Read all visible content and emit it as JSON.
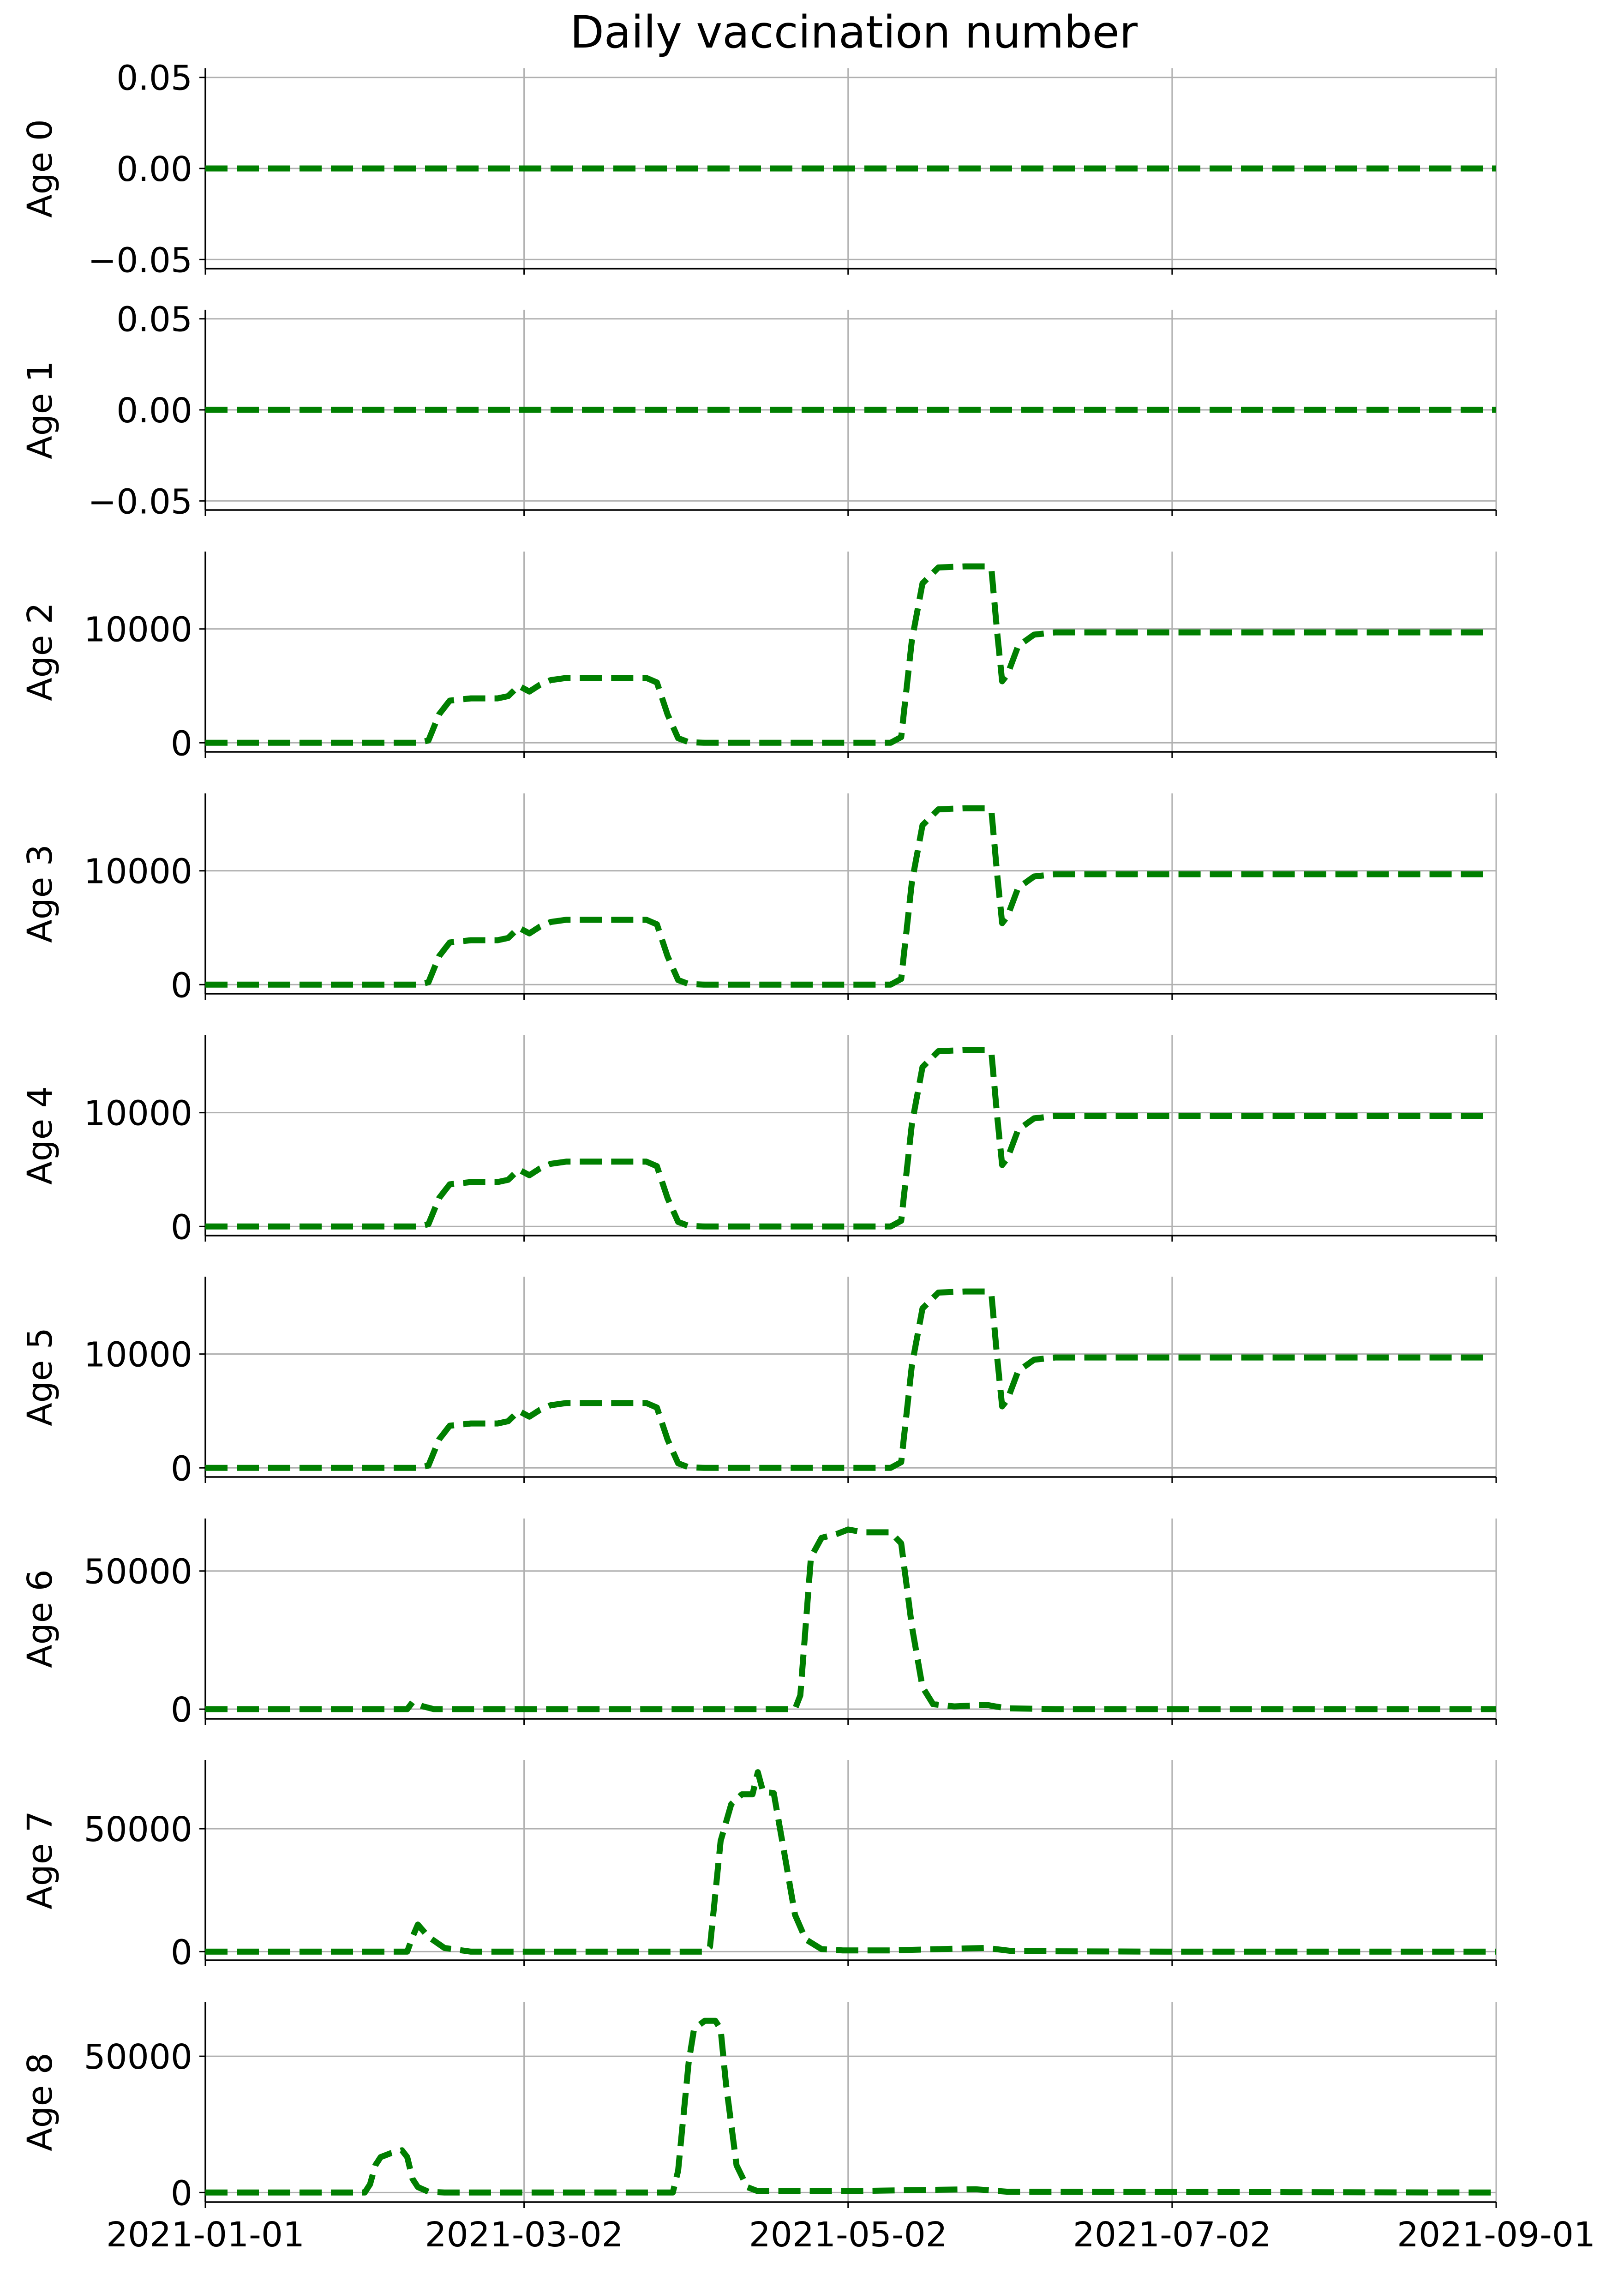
{
  "chart_data": {
    "title": "Daily vaccination number",
    "type": "line",
    "x_type": "date",
    "xlim": [
      "2021-01-01",
      "2021-09-01"
    ],
    "x_tick_labels": [
      "2021-01-01",
      "2021-03-02",
      "2021-05-02",
      "2021-07-02",
      "2021-09-01"
    ],
    "grid": true,
    "line_style": "dashed",
    "line_color": "#007f00",
    "panels": [
      {
        "ylabel": "Age 0",
        "ylim": [
          -0.055,
          0.055
        ],
        "y_ticks": [
          -0.05,
          0.0,
          0.05
        ],
        "y_tick_labels": [
          "−0.05",
          "0.00",
          "0.05"
        ],
        "series": [
          {
            "x": [
              "2021-01-01",
              "2021-09-01"
            ],
            "y": [
              0,
              0
            ]
          }
        ]
      },
      {
        "ylabel": "Age 1",
        "ylim": [
          -0.055,
          0.055
        ],
        "y_ticks": [
          -0.05,
          0.0,
          0.05
        ],
        "y_tick_labels": [
          "−0.05",
          "0.00",
          "0.05"
        ],
        "series": [
          {
            "x": [
              "2021-01-01",
              "2021-09-01"
            ],
            "y": [
              0,
              0
            ]
          }
        ]
      },
      {
        "ylabel": "Age 2",
        "ylim": [
          -800,
          16800
        ],
        "y_ticks": [
          0,
          10000
        ],
        "y_tick_labels": [
          "0",
          "10000"
        ],
        "series": [
          {
            "x": [
              "2021-01-01",
              "2021-02-10",
              "2021-02-12",
              "2021-02-14",
              "2021-02-16",
              "2021-02-20",
              "2021-02-25",
              "2021-02-27",
              "2021-03-01",
              "2021-03-03",
              "2021-03-05",
              "2021-03-07",
              "2021-03-10",
              "2021-03-15",
              "2021-03-20",
              "2021-03-25",
              "2021-03-27",
              "2021-03-29",
              "2021-03-31",
              "2021-04-02",
              "2021-04-05",
              "2021-04-15",
              "2021-04-25",
              "2021-05-05",
              "2021-05-10",
              "2021-05-12",
              "2021-05-14",
              "2021-05-16",
              "2021-05-19",
              "2021-05-24",
              "2021-05-28",
              "2021-05-29",
              "2021-05-30",
              "2021-05-31",
              "2021-06-01",
              "2021-06-03",
              "2021-06-06",
              "2021-06-10",
              "2021-06-20",
              "2021-07-01",
              "2021-07-20",
              "2021-08-10",
              "2021-08-30"
            ],
            "y": [
              0,
              0,
              200,
              2500,
              3700,
              3900,
              3900,
              4100,
              5000,
              4500,
              5100,
              5500,
              5700,
              5700,
              5700,
              5700,
              5300,
              2500,
              400,
              50,
              0,
              0,
              0,
              0,
              0,
              500,
              9000,
              14000,
              15400,
              15500,
              15500,
              15200,
              10000,
              5400,
              6000,
              8500,
              9500,
              9700,
              9700,
              9700,
              9700,
              9700,
              9700
            ]
          }
        ]
      },
      {
        "ylabel": "Age 3",
        "ylim": [
          -800,
          16800
        ],
        "y_ticks": [
          0,
          10000
        ],
        "y_tick_labels": [
          "0",
          "10000"
        ],
        "series": [
          {
            "x": [
              "2021-01-01",
              "2021-02-10",
              "2021-02-12",
              "2021-02-14",
              "2021-02-16",
              "2021-02-20",
              "2021-02-25",
              "2021-02-27",
              "2021-03-01",
              "2021-03-03",
              "2021-03-05",
              "2021-03-07",
              "2021-03-10",
              "2021-03-15",
              "2021-03-20",
              "2021-03-25",
              "2021-03-27",
              "2021-03-29",
              "2021-03-31",
              "2021-04-02",
              "2021-04-05",
              "2021-04-15",
              "2021-04-25",
              "2021-05-05",
              "2021-05-10",
              "2021-05-12",
              "2021-05-14",
              "2021-05-16",
              "2021-05-19",
              "2021-05-24",
              "2021-05-28",
              "2021-05-29",
              "2021-05-30",
              "2021-05-31",
              "2021-06-01",
              "2021-06-03",
              "2021-06-06",
              "2021-06-10",
              "2021-06-20",
              "2021-07-01",
              "2021-07-20",
              "2021-08-10",
              "2021-08-30"
            ],
            "y": [
              0,
              0,
              200,
              2500,
              3700,
              3900,
              3900,
              4100,
              5000,
              4500,
              5100,
              5500,
              5700,
              5700,
              5700,
              5700,
              5300,
              2500,
              400,
              50,
              0,
              0,
              0,
              0,
              0,
              500,
              9000,
              14000,
              15400,
              15500,
              15500,
              15200,
              10000,
              5400,
              6000,
              8500,
              9500,
              9700,
              9700,
              9700,
              9700,
              9700,
              9700
            ]
          }
        ]
      },
      {
        "ylabel": "Age 4",
        "ylim": [
          -800,
          16800
        ],
        "y_ticks": [
          0,
          10000
        ],
        "y_tick_labels": [
          "0",
          "10000"
        ],
        "series": [
          {
            "x": [
              "2021-01-01",
              "2021-02-10",
              "2021-02-12",
              "2021-02-14",
              "2021-02-16",
              "2021-02-20",
              "2021-02-25",
              "2021-02-27",
              "2021-03-01",
              "2021-03-03",
              "2021-03-05",
              "2021-03-07",
              "2021-03-10",
              "2021-03-15",
              "2021-03-20",
              "2021-03-25",
              "2021-03-27",
              "2021-03-29",
              "2021-03-31",
              "2021-04-02",
              "2021-04-05",
              "2021-04-15",
              "2021-04-25",
              "2021-05-05",
              "2021-05-10",
              "2021-05-12",
              "2021-05-14",
              "2021-05-16",
              "2021-05-19",
              "2021-05-24",
              "2021-05-28",
              "2021-05-29",
              "2021-05-30",
              "2021-05-31",
              "2021-06-01",
              "2021-06-03",
              "2021-06-06",
              "2021-06-10",
              "2021-06-20",
              "2021-07-01",
              "2021-07-20",
              "2021-08-10",
              "2021-08-30"
            ],
            "y": [
              0,
              0,
              200,
              2500,
              3700,
              3900,
              3900,
              4100,
              5000,
              4500,
              5100,
              5500,
              5700,
              5700,
              5700,
              5700,
              5300,
              2500,
              400,
              50,
              0,
              0,
              0,
              0,
              0,
              500,
              9000,
              14000,
              15400,
              15500,
              15500,
              15200,
              10000,
              5400,
              6000,
              8500,
              9500,
              9700,
              9700,
              9700,
              9700,
              9700,
              9700
            ]
          }
        ]
      },
      {
        "ylabel": "Age 5",
        "ylim": [
          -800,
          16800
        ],
        "y_ticks": [
          0,
          10000
        ],
        "y_tick_labels": [
          "0",
          "10000"
        ],
        "series": [
          {
            "x": [
              "2021-01-01",
              "2021-02-10",
              "2021-02-12",
              "2021-02-14",
              "2021-02-16",
              "2021-02-20",
              "2021-02-25",
              "2021-02-27",
              "2021-03-01",
              "2021-03-03",
              "2021-03-05",
              "2021-03-07",
              "2021-03-10",
              "2021-03-15",
              "2021-03-20",
              "2021-03-25",
              "2021-03-27",
              "2021-03-29",
              "2021-03-31",
              "2021-04-02",
              "2021-04-05",
              "2021-04-15",
              "2021-04-25",
              "2021-05-05",
              "2021-05-10",
              "2021-05-12",
              "2021-05-14",
              "2021-05-16",
              "2021-05-19",
              "2021-05-24",
              "2021-05-28",
              "2021-05-29",
              "2021-05-30",
              "2021-05-31",
              "2021-06-01",
              "2021-06-03",
              "2021-06-06",
              "2021-06-10",
              "2021-06-20",
              "2021-07-01",
              "2021-07-20",
              "2021-08-10",
              "2021-08-30"
            ],
            "y": [
              0,
              0,
              200,
              2500,
              3700,
              3900,
              3900,
              4100,
              5000,
              4500,
              5100,
              5500,
              5700,
              5700,
              5700,
              5700,
              5300,
              2500,
              400,
              50,
              0,
              0,
              0,
              0,
              0,
              500,
              9000,
              14000,
              15400,
              15500,
              15500,
              15200,
              10000,
              5400,
              6000,
              8500,
              9500,
              9700,
              9700,
              9700,
              9700,
              9700,
              9700
            ]
          }
        ]
      },
      {
        "ylabel": "Age 6",
        "ylim": [
          -3500,
          69000
        ],
        "y_ticks": [
          0,
          50000
        ],
        "y_tick_labels": [
          "0",
          "50000"
        ],
        "series": [
          {
            "x": [
              "2021-01-01",
              "2021-02-08",
              "2021-02-09",
              "2021-02-11",
              "2021-02-13",
              "2021-03-01",
              "2021-04-01",
              "2021-04-22",
              "2021-04-23",
              "2021-04-24",
              "2021-04-25",
              "2021-04-27",
              "2021-04-30",
              "2021-05-02",
              "2021-05-05",
              "2021-05-10",
              "2021-05-12",
              "2021-05-14",
              "2021-05-16",
              "2021-05-18",
              "2021-05-22",
              "2021-05-28",
              "2021-05-30",
              "2021-06-01",
              "2021-06-10",
              "2021-07-01",
              "2021-09-01"
            ],
            "y": [
              0,
              0,
              2500,
              1000,
              0,
              0,
              0,
              0,
              5000,
              30000,
              55000,
              62000,
              63500,
              65000,
              64000,
              64000,
              60000,
              30000,
              8000,
              1800,
              1000,
              1600,
              900,
              300,
              0,
              0,
              0
            ]
          }
        ]
      },
      {
        "ylabel": "Age 7",
        "ylim": [
          -3500,
          78000
        ],
        "y_ticks": [
          0,
          50000
        ],
        "y_tick_labels": [
          "0",
          "50000"
        ],
        "series": [
          {
            "x": [
              "2021-01-01",
              "2021-02-08",
              "2021-02-09",
              "2021-02-10",
              "2021-02-12",
              "2021-02-15",
              "2021-02-20",
              "2021-03-01",
              "2021-04-01",
              "2021-04-05",
              "2021-04-06",
              "2021-04-08",
              "2021-04-10",
              "2021-04-12",
              "2021-04-14",
              "2021-04-15",
              "2021-04-16",
              "2021-04-18",
              "2021-04-20",
              "2021-04-22",
              "2021-04-24",
              "2021-04-27",
              "2021-05-01",
              "2021-05-10",
              "2021-05-28",
              "2021-06-02",
              "2021-07-01",
              "2021-09-01"
            ],
            "y": [
              0,
              0,
              6000,
              11000,
              6000,
              1500,
              0,
              0,
              0,
              0,
              2000,
              45000,
              60000,
              64000,
              64000,
              73000,
              65000,
              64500,
              40000,
              15000,
              5000,
              1000,
              500,
              500,
              1500,
              200,
              0,
              0
            ]
          }
        ]
      },
      {
        "ylabel": "Age 8",
        "ylim": [
          -3500,
          70000
        ],
        "y_ticks": [
          0,
          50000
        ],
        "y_tick_labels": [
          "0",
          "50000"
        ],
        "series": [
          {
            "x": [
              "2021-01-01",
              "2021-01-31",
              "2021-02-01",
              "2021-02-02",
              "2021-02-03",
              "2021-02-05",
              "2021-02-07",
              "2021-02-08",
              "2021-02-09",
              "2021-02-10",
              "2021-02-12",
              "2021-02-15",
              "2021-03-01",
              "2021-03-30",
              "2021-03-31",
              "2021-04-02",
              "2021-04-03",
              "2021-04-05",
              "2021-04-07",
              "2021-04-08",
              "2021-04-09",
              "2021-04-11",
              "2021-04-13",
              "2021-04-15",
              "2021-05-01",
              "2021-05-26",
              "2021-06-01",
              "2021-09-01"
            ],
            "y": [
              0,
              0,
              3000,
              10000,
              13000,
              14500,
              15500,
              13000,
              5000,
              2000,
              300,
              0,
              0,
              0,
              8000,
              48000,
              60000,
              63000,
              63000,
              60000,
              40000,
              10000,
              2000,
              500,
              500,
              1200,
              300,
              0
            ]
          }
        ]
      }
    ]
  }
}
